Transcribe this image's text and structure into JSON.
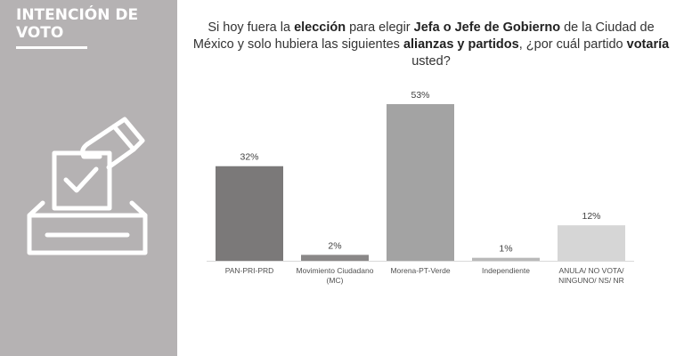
{
  "sidebar": {
    "title_line1": "INTENCIÓN DE",
    "title_line2": "VOTO",
    "icon": "ballot-box-icon"
  },
  "question": {
    "p1": "Si hoy fuera la ",
    "b1": "elección",
    "p2": " para elegir ",
    "b2": "Jefa o Jefe de Gobierno",
    "p3": " de la Ciudad de México y solo hubiera las siguientes ",
    "b3": "alianzas y partidos",
    "p4": ", ¿por cuál partido ",
    "b4": "votaría",
    "p5": " usted?"
  },
  "chart_data": {
    "type": "bar",
    "categories": [
      [
        "PAN-PRI-PRD"
      ],
      [
        "Movimiento Ciudadano",
        "(MC)"
      ],
      [
        "Morena-PT-Verde"
      ],
      [
        "Independiente"
      ],
      [
        "ANULA/ NO VOTA/",
        "NINGUNO/ NS/ NR"
      ]
    ],
    "values": [
      32,
      2,
      53,
      1,
      12
    ],
    "value_labels": [
      "32%",
      "2%",
      "53%",
      "1%",
      "12%"
    ],
    "colors": [
      "#7b7979",
      "#8a8888",
      "#a3a3a3",
      "#b9b9b9",
      "#d6d6d6"
    ],
    "ylim": [
      0,
      53
    ],
    "grid": false
  }
}
